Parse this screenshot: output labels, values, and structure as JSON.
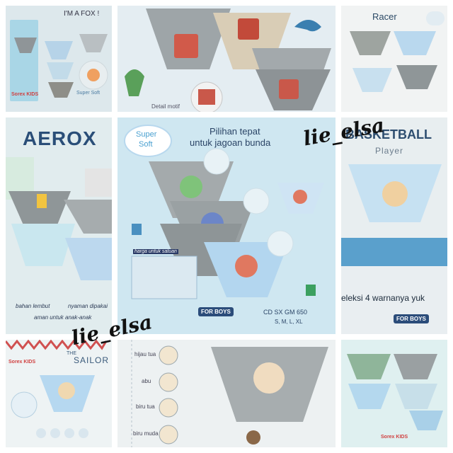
{
  "tile1": {
    "title": "I'M A FOX !",
    "badge": "Super Soft",
    "brand": "Sorex KIDS"
  },
  "tile2": {
    "caption": "Detail motif"
  },
  "tile3": {
    "title": "Racer"
  },
  "tile4": {
    "title": "AEROX",
    "features": [
      "bahan lembut",
      "nyaman dipakai",
      "aman untuk anak-anak"
    ]
  },
  "tile5": {
    "badge_top": "Super",
    "badge_bottom": "Soft",
    "headline_1": "Pilihan tepat",
    "headline_2": "untuk jagoan bunda",
    "pack_label": "harga untuk satuan",
    "for_boys": "FOR BOYS",
    "code": "CD SX GM 650",
    "sizes": "S, M, L, XL"
  },
  "tile6": {
    "title_1": "BASKETBALL",
    "title_2": "Player",
    "banner": "eleksi 4 warnanya yuk",
    "for_boys": "FOR BOYS"
  },
  "tile7": {
    "title_1": "THE",
    "title_2": "SAILOR",
    "brand": "Sorex KIDS"
  },
  "tile8": {
    "colors": [
      "hijau tua",
      "abu",
      "biru tua",
      "biru muda"
    ]
  },
  "tile9": {
    "brand": "Sorex KIDS"
  },
  "watermark": {
    "text_1": "lie_elsa",
    "text_2": "lie_elsa"
  },
  "colors": {
    "grey": "#9aa2a6",
    "lightblue": "#b8d8ee",
    "beige": "#d8cbb4",
    "teal": "#2b6a8a"
  }
}
